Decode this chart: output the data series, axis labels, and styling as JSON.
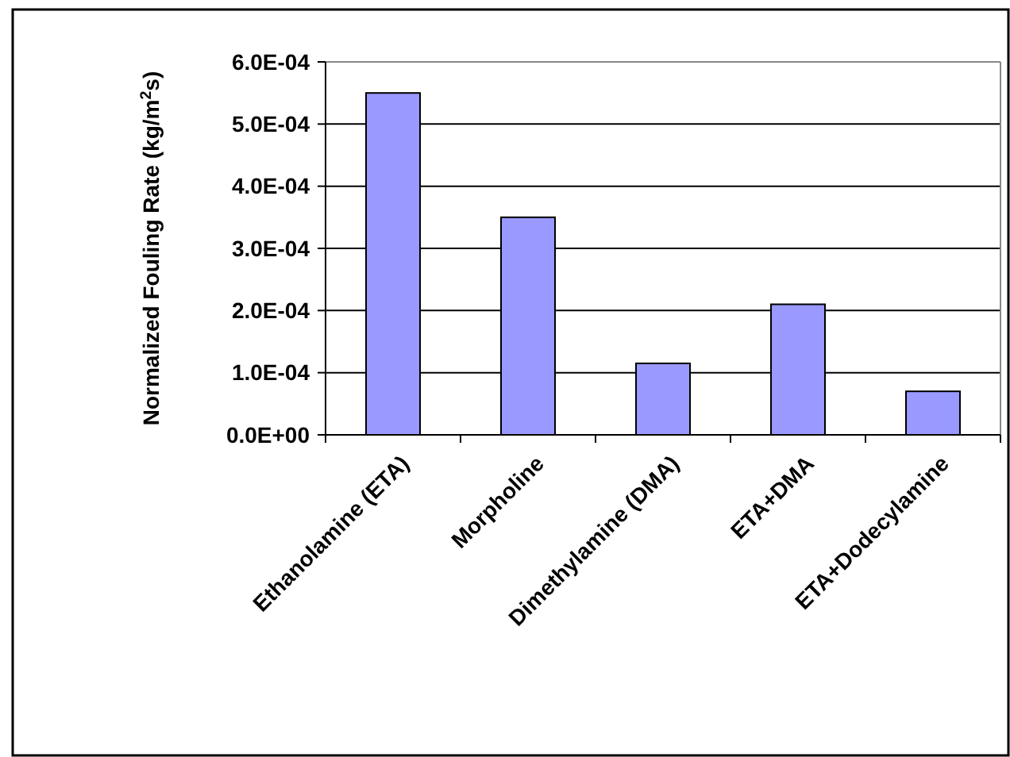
{
  "chart_data": {
    "type": "bar",
    "ylabel": "Normalized Fouling Rate (kg/m$^{2}$s)",
    "categories": [
      "Ethanolamine (ETA)",
      "Morpholine",
      "Dimethylamine (DMA)",
      "ETA+DMA",
      "ETA+Dodecylamine"
    ],
    "values": [
      0.00055,
      0.00035,
      0.000115,
      0.00021,
      7e-05
    ],
    "color": "#9999ff",
    "ylim": [
      0,
      0.0006
    ],
    "yticks": [
      {
        "value": 0,
        "label": "0.0E+00"
      },
      {
        "value": 0.0001,
        "label": "1.0E-04"
      },
      {
        "value": 0.0002,
        "label": "2.0E-04"
      },
      {
        "value": 0.0003,
        "label": "3.0E-04"
      },
      {
        "value": 0.0004,
        "label": "4.0E-04"
      },
      {
        "value": 0.0005,
        "label": "5.0E-04"
      },
      {
        "value": 0.0006,
        "label": "6.0E-04"
      }
    ],
    "grid": "y"
  }
}
